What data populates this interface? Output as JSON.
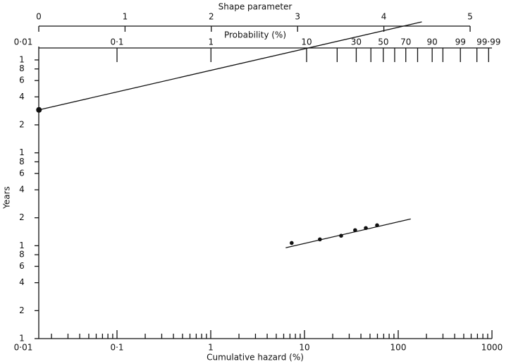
{
  "chart_data": {
    "type": "scatter",
    "x_label": "Cumulative hazard (%)",
    "y_label": "Years",
    "top_axis_label": "Probability (%)",
    "shape_axis_label": "Shape parameter",
    "log_x": true,
    "log_y": true,
    "xlim": [
      0.01,
      1000
    ],
    "ylim": [
      1,
      1345
    ],
    "xticks": [
      {
        "value": 0.01,
        "label": "0·01"
      },
      {
        "value": 0.1,
        "label": "0·1"
      },
      1,
      10,
      100,
      1000
    ],
    "minor_subdivisions": [
      2,
      3,
      4,
      5,
      6,
      7,
      8,
      9
    ],
    "yticks": [
      1,
      2,
      4,
      6,
      8,
      {
        "value": 10,
        "label": "1"
      },
      {
        "value": 20,
        "label": "2"
      },
      {
        "value": 40,
        "label": "4"
      },
      {
        "value": 60,
        "label": "6"
      },
      {
        "value": 80,
        "label": "8"
      },
      {
        "value": 100,
        "label": "1"
      },
      {
        "value": 200,
        "label": "2"
      },
      {
        "value": 400,
        "label": "4"
      },
      {
        "value": 600,
        "label": "6"
      },
      {
        "value": 800,
        "label": "8"
      },
      {
        "value": 1000,
        "label": "1"
      }
    ],
    "probability_ticks": [
      {
        "value": 0.01,
        "label": "0·01"
      },
      {
        "value": 0.1,
        "label": "0·1"
      },
      1,
      10,
      30,
      50,
      70,
      90,
      99,
      {
        "value": 99.99,
        "label": "99·99"
      }
    ],
    "probability_minor_ticks": [
      20,
      40,
      60,
      80,
      95,
      99.9
    ],
    "shape_lim": [
      0,
      5
    ],
    "shape_ticks": [
      0,
      1,
      2,
      3,
      4,
      5
    ],
    "x": [
      7.3,
      14.6,
      24.6,
      34.7,
      45.1,
      59.5
    ],
    "values": [
      10.7,
      11.7,
      12.8,
      14.7,
      15.5,
      16.6
    ],
    "fit_line": {
      "x": [
        6.3,
        136
      ],
      "y": [
        9.5,
        19.4
      ]
    },
    "origin_point": {
      "x": 0.0147,
      "y": 290
    },
    "shape_estimate": 4.44,
    "color": "#111111"
  }
}
